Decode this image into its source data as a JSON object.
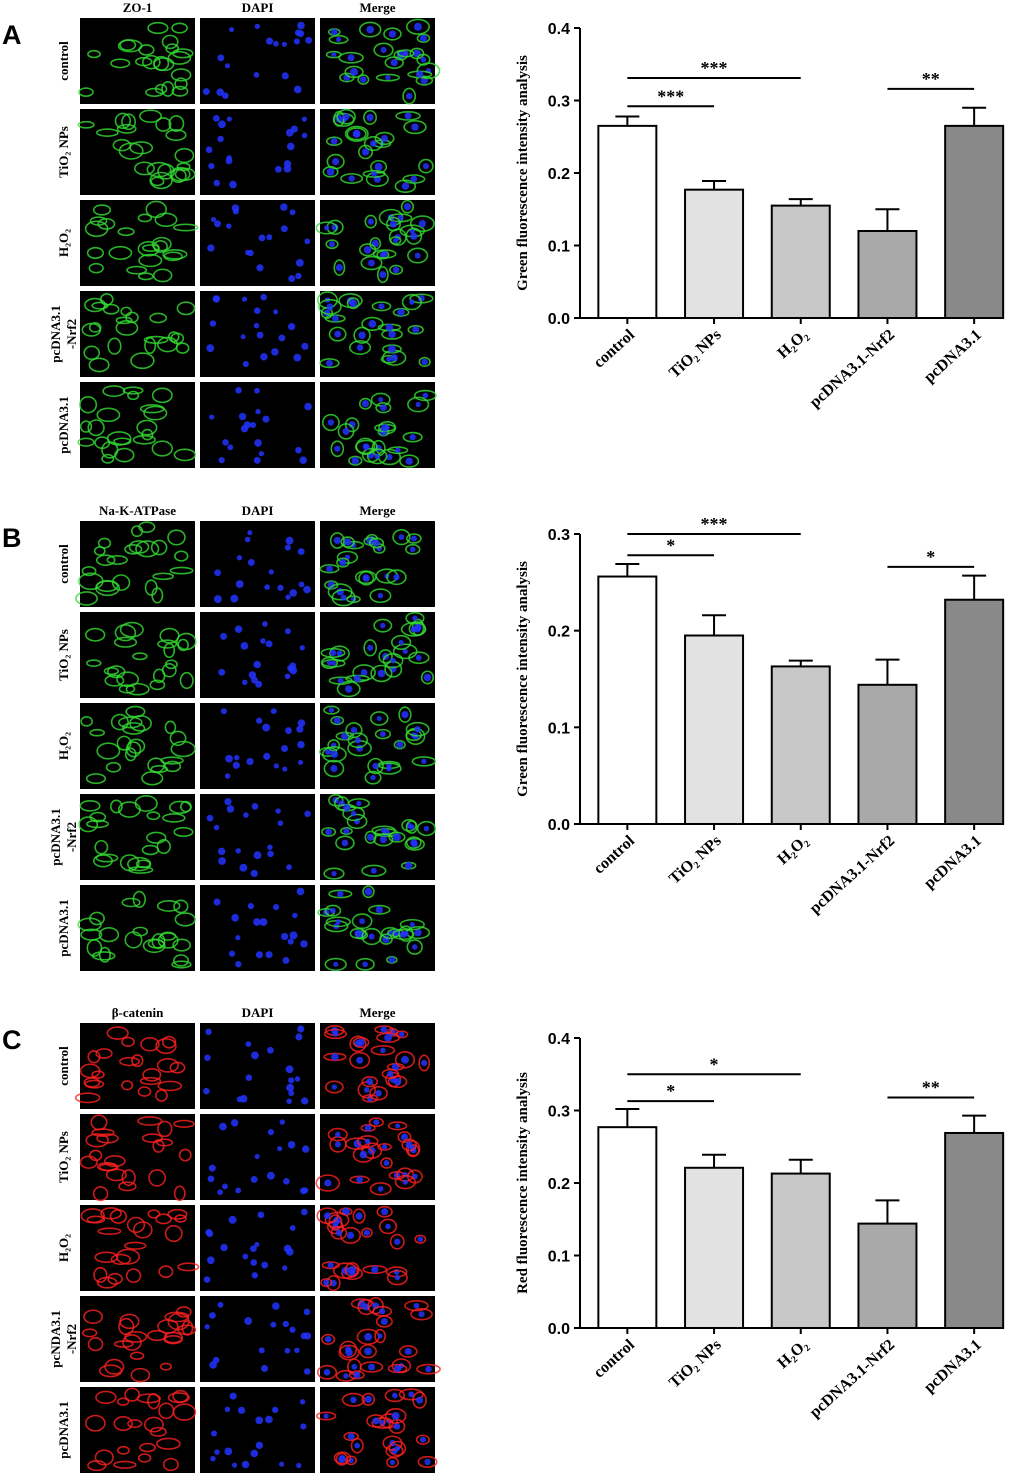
{
  "panels": [
    {
      "letter": "A",
      "columns": [
        "ZO-1",
        "DAPI",
        "Merge"
      ],
      "rows": [
        [
          "control"
        ],
        [
          "TiO₂ NPs"
        ],
        [
          "H₂O₂"
        ],
        [
          "pcDNA3.1",
          "-Nrf2"
        ],
        [
          "pcDNA3.1"
        ]
      ]
    },
    {
      "letter": "B",
      "columns": [
        "Na-K-ATPase",
        "DAPI",
        "Merge"
      ],
      "rows": [
        [
          "control"
        ],
        [
          "TiO₂ NPs"
        ],
        [
          "H₂O₂"
        ],
        [
          "pcDNA3.1",
          "-Nrf2"
        ],
        [
          "pcDNA3.1"
        ]
      ]
    },
    {
      "letter": "C",
      "columns": [
        "β-catenin",
        "DAPI",
        "Merge"
      ],
      "rows": [
        [
          "control"
        ],
        [
          "TiO₂ NPs"
        ],
        [
          "H₂O₂"
        ],
        [
          "pcNDA3.1",
          "-Nrf2"
        ],
        [
          "pcDNA3.1"
        ]
      ]
    }
  ],
  "chart_data": [
    {
      "type": "bar",
      "y_label": "Green fluorescence intensity analysis",
      "categories": [
        "control",
        "TiO₂ NPs",
        "H₂O₂",
        "pcDNA3.1-Nrf2",
        "pcDNA3.1"
      ],
      "values": [
        0.265,
        0.177,
        0.155,
        0.12,
        0.265
      ],
      "errors": [
        0.013,
        0.012,
        0.009,
        0.03,
        0.025
      ],
      "colors": [
        "#ffffff",
        "#e2e2e2",
        "#c8c8c8",
        "#a9a9a9",
        "#898989"
      ],
      "ylim": [
        0,
        0.4
      ],
      "yticks": [
        {
          "value": 0,
          "label": "0.0"
        },
        0.1,
        0.2,
        0.3,
        0.4
      ],
      "annotations": [
        {
          "text": "***",
          "from": 0,
          "to": 1,
          "y": 0.292
        },
        {
          "text": "***",
          "from": 0,
          "to": 2,
          "y": 0.331
        },
        {
          "text": "**",
          "from": 3,
          "to": 4,
          "y": 0.316
        }
      ]
    },
    {
      "type": "bar",
      "y_label": "Green fluorescence intensity analysis",
      "categories": [
        "control",
        "TiO₂ NPs",
        "H₂O₂",
        "pcDNA3.1-Nrf2",
        "pcDNA3.1"
      ],
      "values": [
        0.256,
        0.195,
        0.163,
        0.144,
        0.232
      ],
      "errors": [
        0.013,
        0.021,
        0.006,
        0.026,
        0.025
      ],
      "colors": [
        "#ffffff",
        "#e2e2e2",
        "#c8c8c8",
        "#a9a9a9",
        "#898989"
      ],
      "ylim": [
        0,
        0.3
      ],
      "yticks": [
        {
          "value": 0,
          "label": "0.0"
        },
        0.1,
        0.2,
        0.3
      ],
      "annotations": [
        {
          "text": "*",
          "from": 0,
          "to": 1,
          "y": 0.278
        },
        {
          "text": "***",
          "from": 0,
          "to": 2,
          "y": 0.3
        },
        {
          "text": "*",
          "from": 3,
          "to": 4,
          "y": 0.266
        }
      ]
    },
    {
      "type": "bar",
      "y_label": "Red fluorescence intensity analysis",
      "categories": [
        "control",
        "TiO₂ NPs",
        "H₂O₂",
        "pcDNA3.1-Nrf2",
        "pcDNA3.1"
      ],
      "values": [
        0.277,
        0.221,
        0.213,
        0.144,
        0.269
      ],
      "errors": [
        0.025,
        0.018,
        0.019,
        0.032,
        0.024
      ],
      "colors": [
        "#ffffff",
        "#e2e2e2",
        "#c8c8c8",
        "#a9a9a9",
        "#898989"
      ],
      "ylim": [
        0,
        0.4
      ],
      "yticks": [
        {
          "value": 0,
          "label": "0.0"
        },
        0.1,
        0.2,
        0.3,
        0.4
      ],
      "annotations": [
        {
          "text": "*",
          "from": 0,
          "to": 1,
          "y": 0.313
        },
        {
          "text": "*",
          "from": 0,
          "to": 2,
          "y": 0.35
        },
        {
          "text": "**",
          "from": 3,
          "to": 4,
          "y": 0.318
        }
      ]
    }
  ]
}
